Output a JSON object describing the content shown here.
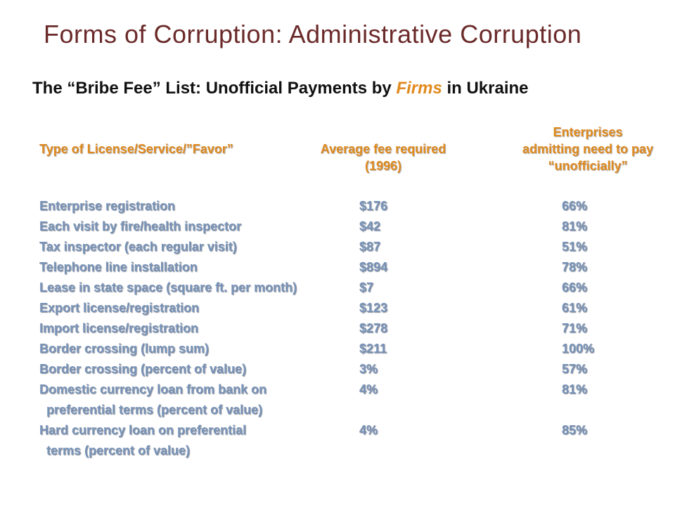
{
  "title": "Forms of Corruption:  Administrative Corruption",
  "subtitle": {
    "before": "The “Bribe Fee” List: Unofficial Payments by ",
    "highlight": "Firms",
    "after": " in Ukraine"
  },
  "headers": {
    "type": "Type of License/Service/”Favor”",
    "fee_line1": "Average fee required",
    "fee_line2": "(1996)",
    "ent_line1": "Enterprises",
    "ent_line2": "admitting need to pay",
    "ent_line3": "“unofficially”"
  },
  "rows": [
    {
      "label": "Enterprise registration",
      "fee": "$176",
      "pct": "66%"
    },
    {
      "label": "Each visit by fire/health inspector",
      "fee": "$42",
      "pct": "81%"
    },
    {
      "label": "Tax inspector (each regular visit)",
      "fee": "$87",
      "pct": "51%"
    },
    {
      "label": "Telephone line installation",
      "fee": "$894",
      "pct": "78%"
    },
    {
      "label": "Lease in state space (square ft. per month)",
      "fee": "$7",
      "pct": "66%"
    },
    {
      "label": "Export license/registration",
      "fee": "$123",
      "pct": "61%"
    },
    {
      "label": "Import license/registration",
      "fee": "$278",
      "pct": "71%"
    },
    {
      "label": "Border crossing (lump sum)",
      "fee": "$211",
      "pct": "100%"
    },
    {
      "label": "Border crossing (percent of value)",
      "fee": "3%",
      "pct": "57%"
    },
    {
      "label": "Domestic currency loan from bank on",
      "label_cont": "preferential terms (percent of value)",
      "fee": "4%",
      "pct": "81%"
    },
    {
      "label": "Hard currency loan on preferential",
      "label_cont": "terms (percent of value)",
      "fee": "4%",
      "pct": "85%"
    }
  ],
  "colors": {
    "title": "#6b2a2a",
    "header": "#e08a1e",
    "row_text": "#7893b8",
    "highlight": "#e08a1e"
  }
}
